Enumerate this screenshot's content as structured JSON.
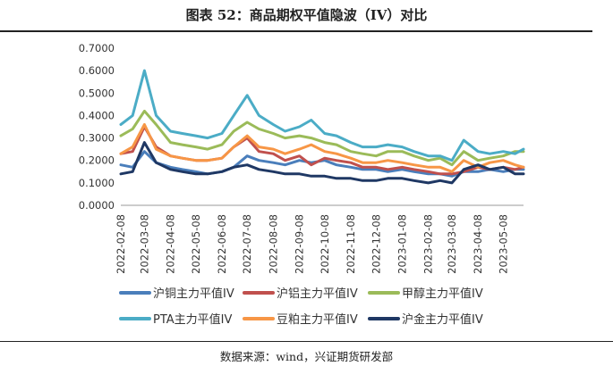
{
  "title": "图表 52：商品期权平值隐波（IV）对比",
  "source": "数据来源：wind，兴证期货研发部",
  "chart_data": {
    "type": "line",
    "title": "图表 52：商品期权平值隐波（IV）对比",
    "xlabel": "",
    "ylabel": "",
    "ylim": [
      0,
      0.7
    ],
    "ytick_values": [
      0,
      0.1,
      0.2,
      0.3,
      0.4,
      0.5,
      0.6,
      0.7
    ],
    "yticks": [
      "0.0000",
      "0.1000",
      "0.2000",
      "0.3000",
      "0.4000",
      "0.5000",
      "0.6000",
      "0.7000"
    ],
    "xticks": [
      "2022-02-08",
      "2022-03-08",
      "2022-04-08",
      "2022-05-08",
      "2022-06-08",
      "2022-07-08",
      "2022-08-08",
      "2022-09-08",
      "2022-10-08",
      "2022-11-08",
      "2022-12-08",
      "2023-01-08",
      "2023-02-08",
      "2023-03-08",
      "2023-04-08",
      "2023-05-08"
    ],
    "x": [
      "2022-02-08",
      "2022-02-22",
      "2022-03-08",
      "2022-03-22",
      "2022-04-08",
      "2022-04-22",
      "2022-05-08",
      "2022-05-22",
      "2022-06-08",
      "2022-06-22",
      "2022-07-08",
      "2022-07-22",
      "2022-08-08",
      "2022-08-22",
      "2022-09-08",
      "2022-09-22",
      "2022-10-08",
      "2022-10-22",
      "2022-11-08",
      "2022-11-22",
      "2022-12-08",
      "2022-12-22",
      "2023-01-08",
      "2023-01-22",
      "2023-02-08",
      "2023-02-22",
      "2023-03-08",
      "2023-03-22",
      "2023-04-08",
      "2023-04-22",
      "2023-05-08",
      "2023-05-22",
      "2023-06-01"
    ],
    "grid": false,
    "legend_position": "bottom",
    "series": [
      {
        "name": "沪铜主力平值IV",
        "color": "#4a7ebb",
        "values": [
          0.18,
          0.17,
          0.24,
          0.19,
          0.17,
          0.16,
          0.15,
          0.14,
          0.15,
          0.17,
          0.22,
          0.2,
          0.19,
          0.18,
          0.2,
          0.19,
          0.2,
          0.18,
          0.17,
          0.16,
          0.16,
          0.15,
          0.16,
          0.15,
          0.14,
          0.14,
          0.13,
          0.15,
          0.15,
          0.16,
          0.15,
          0.16,
          0.16
        ]
      },
      {
        "name": "沪铝主力平值IV",
        "color": "#c0504d",
        "values": [
          0.23,
          0.24,
          0.35,
          0.26,
          0.22,
          0.21,
          0.2,
          0.2,
          0.21,
          0.26,
          0.3,
          0.24,
          0.23,
          0.2,
          0.22,
          0.18,
          0.21,
          0.2,
          0.19,
          0.17,
          0.17,
          0.16,
          0.17,
          0.16,
          0.15,
          0.14,
          0.14,
          0.15,
          0.17,
          0.16,
          0.17,
          0.16,
          0.17
        ]
      },
      {
        "name": "甲醇主力平值IV",
        "color": "#9bbb59",
        "values": [
          0.31,
          0.34,
          0.42,
          0.36,
          0.28,
          0.27,
          0.26,
          0.25,
          0.27,
          0.33,
          0.37,
          0.34,
          0.32,
          0.3,
          0.31,
          0.3,
          0.28,
          0.27,
          0.24,
          0.23,
          0.22,
          0.24,
          0.24,
          0.22,
          0.2,
          0.21,
          0.18,
          0.24,
          0.2,
          0.21,
          0.22,
          0.24,
          0.24
        ]
      },
      {
        "name": "PTA主力平值IV",
        "color": "#4bacc6",
        "values": [
          0.36,
          0.4,
          0.6,
          0.4,
          0.33,
          0.32,
          0.31,
          0.3,
          0.32,
          0.4,
          0.49,
          0.4,
          0.36,
          0.33,
          0.35,
          0.38,
          0.32,
          0.31,
          0.28,
          0.26,
          0.26,
          0.27,
          0.26,
          0.24,
          0.22,
          0.22,
          0.2,
          0.29,
          0.24,
          0.23,
          0.24,
          0.23,
          0.25
        ]
      },
      {
        "name": "豆粕主力平值IV",
        "color": "#f79646",
        "values": [
          0.23,
          0.26,
          0.36,
          0.25,
          0.22,
          0.21,
          0.2,
          0.2,
          0.21,
          0.26,
          0.31,
          0.26,
          0.25,
          0.23,
          0.25,
          0.27,
          0.24,
          0.23,
          0.21,
          0.19,
          0.19,
          0.2,
          0.19,
          0.18,
          0.17,
          0.17,
          0.15,
          0.2,
          0.17,
          0.19,
          0.2,
          0.18,
          0.17
        ]
      },
      {
        "name": "沪金主力平值IV",
        "color": "#1f3864",
        "values": [
          0.14,
          0.15,
          0.28,
          0.19,
          0.16,
          0.15,
          0.14,
          0.14,
          0.15,
          0.17,
          0.18,
          0.16,
          0.15,
          0.14,
          0.14,
          0.13,
          0.13,
          0.12,
          0.12,
          0.11,
          0.11,
          0.12,
          0.12,
          0.11,
          0.1,
          0.11,
          0.1,
          0.16,
          0.18,
          0.16,
          0.17,
          0.14,
          0.14
        ]
      }
    ]
  }
}
